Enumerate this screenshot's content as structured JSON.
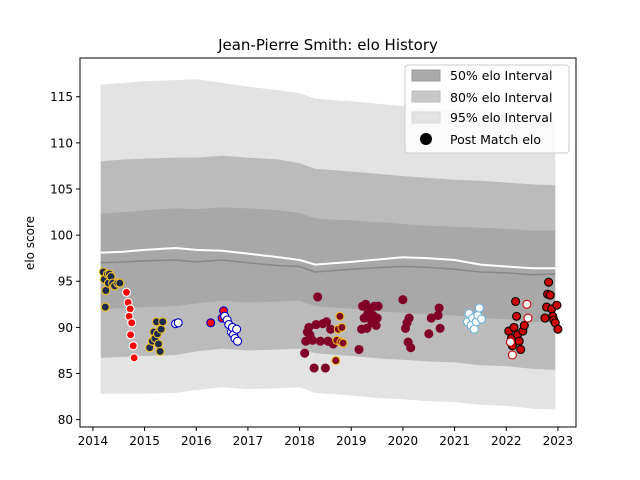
{
  "chart_data": {
    "type": "scatter",
    "title": "Jean-Pierre Smith: elo History",
    "xlabel": "",
    "ylabel": "elo score",
    "xlim": [
      2013.75,
      2023.35
    ],
    "ylim": [
      79.2,
      119.2
    ],
    "x_ticks": [
      "2014",
      "2015",
      "2016",
      "2017",
      "2018",
      "2019",
      "2020",
      "2021",
      "2022",
      "2023"
    ],
    "y_ticks": [
      "80",
      "85",
      "90",
      "95",
      "100",
      "105",
      "110",
      "115"
    ],
    "legend": {
      "placement": "top-right",
      "entries": [
        "50% elo Interval",
        "80% elo Interval",
        "95% elo Interval",
        "Post Match elo"
      ]
    },
    "colors": {
      "band50": "#999999",
      "band80": "#bbbbbb",
      "band95": "#e3e3e3",
      "median_line": "#888888",
      "mean_line": "#ffffff"
    },
    "bands": {
      "x": [
        2014.15,
        2014.6,
        2015.0,
        2015.6,
        2016.0,
        2016.5,
        2017.0,
        2017.6,
        2018.0,
        2018.3,
        2019.0,
        2019.6,
        2020.0,
        2020.5,
        2021.0,
        2021.5,
        2022.0,
        2022.5,
        2022.95
      ],
      "p2_5": [
        82.8,
        82.8,
        82.8,
        82.9,
        83.2,
        83.5,
        83.3,
        83.4,
        83.5,
        82.9,
        82.6,
        82.3,
        82.2,
        82.0,
        81.9,
        81.6,
        81.5,
        81.2,
        81.1
      ],
      "p10": [
        86.7,
        86.8,
        86.9,
        87.0,
        87.4,
        87.7,
        87.5,
        87.6,
        87.7,
        87.2,
        86.9,
        86.6,
        86.5,
        86.3,
        86.2,
        85.9,
        85.8,
        85.5,
        85.4
      ],
      "p25": [
        92.0,
        92.1,
        92.2,
        92.3,
        92.6,
        92.9,
        92.7,
        92.8,
        92.9,
        92.3,
        92.0,
        91.7,
        91.6,
        91.4,
        91.3,
        91.0,
        90.9,
        90.6,
        90.5
      ],
      "median": [
        97.0,
        97.1,
        97.2,
        97.3,
        97.1,
        97.3,
        97.0,
        96.7,
        96.6,
        96.0,
        96.3,
        96.5,
        96.6,
        96.5,
        96.3,
        96.0,
        95.9,
        95.7,
        95.8
      ],
      "mean": [
        98.1,
        98.2,
        98.4,
        98.6,
        98.4,
        98.3,
        98.0,
        97.6,
        97.3,
        96.8,
        97.1,
        97.4,
        97.6,
        97.5,
        97.3,
        96.8,
        96.6,
        96.4,
        96.4
      ],
      "p75": [
        102.3,
        102.5,
        102.7,
        102.9,
        102.8,
        103.0,
        102.9,
        102.7,
        102.4,
        101.8,
        101.6,
        101.4,
        101.2,
        101.0,
        100.9,
        100.8,
        100.7,
        100.5,
        100.5
      ],
      "p90": [
        108.0,
        108.2,
        108.3,
        108.4,
        108.4,
        108.6,
        108.4,
        108.2,
        107.8,
        107.2,
        106.9,
        106.6,
        106.4,
        106.2,
        106.0,
        105.9,
        105.7,
        105.5,
        105.4
      ],
      "p97_5": [
        116.3,
        116.5,
        116.7,
        116.8,
        116.9,
        116.5,
        116.1,
        115.7,
        115.4,
        114.8,
        114.5,
        114.2,
        114.0,
        113.8,
        113.6,
        113.5,
        113.2,
        112.9,
        112.6
      ]
    },
    "matches": [
      {
        "fill": "#1c2a4d",
        "edge": "#f0c020",
        "points": [
          [
            2014.2,
            96.0
          ],
          [
            2014.22,
            95.2
          ],
          [
            2014.25,
            94.0
          ],
          [
            2014.28,
            95.8
          ],
          [
            2014.3,
            94.8
          ],
          [
            2014.32,
            95.8
          ],
          [
            2014.35,
            95.5
          ],
          [
            2014.38,
            94.8
          ],
          [
            2014.42,
            94.5
          ],
          [
            2014.48,
            94.8
          ],
          [
            2014.52,
            94.8
          ],
          [
            2014.24,
            92.2
          ]
        ]
      },
      {
        "fill": "#ff0000",
        "edge": "#ffffff",
        "points": [
          [
            2014.65,
            93.8
          ],
          [
            2014.68,
            92.7
          ],
          [
            2014.72,
            92.0
          ],
          [
            2014.7,
            91.2
          ],
          [
            2014.75,
            90.5
          ],
          [
            2014.73,
            89.2
          ],
          [
            2014.78,
            88.0
          ],
          [
            2014.8,
            86.7
          ]
        ]
      },
      {
        "fill": "#1c2a4d",
        "edge": "#f0c020",
        "points": [
          [
            2015.1,
            87.8
          ],
          [
            2015.15,
            88.5
          ],
          [
            2015.18,
            89.5
          ],
          [
            2015.2,
            88.8
          ],
          [
            2015.23,
            90.6
          ],
          [
            2015.25,
            89.3
          ],
          [
            2015.27,
            88.2
          ],
          [
            2015.3,
            87.4
          ],
          [
            2015.32,
            89.8
          ],
          [
            2015.35,
            90.6
          ]
        ]
      },
      {
        "fill": "#ffffff",
        "edge": "#0000cc",
        "points": [
          [
            2015.6,
            90.4
          ],
          [
            2015.65,
            90.5
          ]
        ]
      },
      {
        "fill": "#ff0000",
        "edge": "#0000cc",
        "points": [
          [
            2016.28,
            90.5
          ],
          [
            2016.5,
            91.0
          ],
          [
            2016.53,
            91.8
          ]
        ]
      },
      {
        "fill": "#ffffff",
        "edge": "#0000cc",
        "points": [
          [
            2016.55,
            91.2
          ],
          [
            2016.6,
            90.8
          ],
          [
            2016.63,
            90.3
          ],
          [
            2016.68,
            89.5
          ],
          [
            2016.7,
            90.0
          ],
          [
            2016.72,
            89.2
          ],
          [
            2016.75,
            88.8
          ],
          [
            2016.78,
            89.8
          ],
          [
            2016.8,
            88.5
          ]
        ]
      },
      {
        "fill": "#800026",
        "edge": "#800026",
        "points": [
          [
            2018.1,
            87.2
          ],
          [
            2018.12,
            88.5
          ],
          [
            2018.15,
            89.5
          ],
          [
            2018.18,
            90.0
          ],
          [
            2018.2,
            89.2
          ],
          [
            2018.25,
            88.6
          ],
          [
            2018.28,
            85.6
          ],
          [
            2018.32,
            90.3
          ],
          [
            2018.35,
            93.3
          ],
          [
            2018.4,
            88.5
          ],
          [
            2018.45,
            90.4
          ],
          [
            2018.5,
            85.6
          ],
          [
            2018.52,
            90.6
          ],
          [
            2018.55,
            88.5
          ],
          [
            2018.6,
            89.8
          ],
          [
            2018.65,
            88.2
          ]
        ]
      },
      {
        "fill": "#800026",
        "edge": "#f0c020",
        "points": [
          [
            2018.7,
            86.4
          ],
          [
            2018.72,
            88.6
          ],
          [
            2018.75,
            89.8
          ],
          [
            2018.78,
            91.2
          ],
          [
            2018.8,
            88.4
          ],
          [
            2018.82,
            90.0
          ],
          [
            2018.84,
            88.3
          ]
        ]
      },
      {
        "fill": "#800026",
        "edge": "#800026",
        "points": [
          [
            2019.15,
            87.6
          ],
          [
            2019.2,
            89.8
          ],
          [
            2019.22,
            92.3
          ],
          [
            2019.25,
            91.0
          ],
          [
            2019.28,
            92.5
          ],
          [
            2019.3,
            89.9
          ],
          [
            2019.32,
            91.5
          ],
          [
            2019.35,
            92.0
          ],
          [
            2019.38,
            91.0
          ],
          [
            2019.4,
            90.5
          ],
          [
            2019.42,
            91.3
          ],
          [
            2019.45,
            92.3
          ],
          [
            2019.48,
            90.2
          ],
          [
            2019.5,
            91.0
          ],
          [
            2019.52,
            92.3
          ]
        ]
      },
      {
        "fill": "#800026",
        "edge": "#800026",
        "points": [
          [
            2020.0,
            93.0
          ],
          [
            2020.05,
            89.9
          ],
          [
            2020.08,
            90.5
          ],
          [
            2020.1,
            88.4
          ],
          [
            2020.12,
            91.0
          ],
          [
            2020.15,
            87.8
          ],
          [
            2020.5,
            89.3
          ],
          [
            2020.55,
            91.0
          ],
          [
            2020.7,
            92.1
          ],
          [
            2020.72,
            89.9
          ],
          [
            2020.68,
            91.3
          ]
        ]
      },
      {
        "fill": "#ffffff",
        "edge": "#6cb4e4",
        "points": [
          [
            2021.25,
            90.6
          ],
          [
            2021.28,
            91.5
          ],
          [
            2021.32,
            90.2
          ],
          [
            2021.35,
            91.0
          ],
          [
            2021.38,
            89.8
          ],
          [
            2021.42,
            90.6
          ],
          [
            2021.45,
            91.3
          ],
          [
            2021.48,
            92.1
          ],
          [
            2021.52,
            90.9
          ]
        ]
      },
      {
        "fill": "#cc0000",
        "edge": "#000000",
        "points": [
          [
            2022.05,
            89.6
          ],
          [
            2022.1,
            88.8
          ],
          [
            2022.12,
            88.0
          ],
          [
            2022.15,
            90.0
          ],
          [
            2022.18,
            92.8
          ],
          [
            2022.2,
            91.2
          ],
          [
            2022.22,
            89.2
          ],
          [
            2022.25,
            88.5
          ],
          [
            2022.28,
            87.6
          ],
          [
            2022.32,
            89.6
          ],
          [
            2022.35,
            90.2
          ],
          [
            2022.75,
            91.0
          ],
          [
            2022.78,
            92.2
          ],
          [
            2022.8,
            93.6
          ],
          [
            2022.82,
            94.9
          ],
          [
            2022.85,
            93.5
          ],
          [
            2022.88,
            92.0
          ],
          [
            2022.9,
            91.2
          ],
          [
            2022.92,
            90.8
          ],
          [
            2022.95,
            90.5
          ],
          [
            2022.98,
            92.4
          ],
          [
            2023.0,
            89.8
          ]
        ]
      },
      {
        "fill": "#ffffff",
        "edge": "#cc0000",
        "points": [
          [
            2022.08,
            88.4
          ],
          [
            2022.12,
            87.0
          ],
          [
            2022.4,
            92.5
          ],
          [
            2022.42,
            91.0
          ]
        ]
      }
    ]
  }
}
